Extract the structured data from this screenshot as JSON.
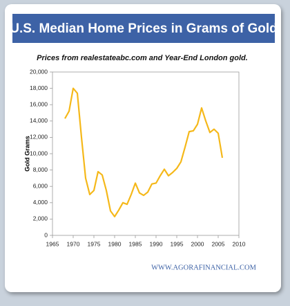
{
  "chart_data": {
    "type": "line",
    "title": "U.S. Median Home Prices in Grams of Gold",
    "subtitle": "Prices from realestateabc.com and Year-End London gold.",
    "y_label": "Gold Grams",
    "source": "WWW.AGORAFINANCIAL.COM",
    "x": [
      1968,
      1969,
      1970,
      1971,
      1972,
      1973,
      1974,
      1975,
      1976,
      1977,
      1978,
      1979,
      1980,
      1981,
      1982,
      1983,
      1984,
      1985,
      1986,
      1987,
      1988,
      1989,
      1990,
      1991,
      1992,
      1993,
      1994,
      1995,
      1996,
      1997,
      1998,
      1999,
      2000,
      2001,
      2002,
      2003,
      2004,
      2005,
      2006
    ],
    "series": [
      {
        "name": "Gold Grams",
        "color": "#f5b819",
        "values": [
          14300,
          15200,
          18000,
          17400,
          12000,
          7000,
          5000,
          5500,
          7800,
          7400,
          5500,
          3000,
          2300,
          3100,
          4000,
          3800,
          5000,
          6400,
          5200,
          4900,
          5300,
          6300,
          6400,
          7300,
          8100,
          7300,
          7700,
          8200,
          9000,
          10800,
          12700,
          12800,
          13600,
          15600,
          14000,
          12600,
          13000,
          12500,
          9500
        ]
      }
    ],
    "xlim": [
      1965,
      2010
    ],
    "xticks": [
      1965,
      1970,
      1975,
      1980,
      1985,
      1990,
      1995,
      2000,
      2005,
      2010
    ],
    "ylim": [
      0,
      20000
    ],
    "yticks": [
      0,
      {
        "value": 2000,
        "label": "2,000"
      },
      {
        "value": 4000,
        "label": "4,000"
      },
      {
        "value": 6000,
        "label": "6,000"
      },
      {
        "value": 8000,
        "label": "8,000"
      },
      {
        "value": 10000,
        "label": "10,000"
      },
      {
        "value": 12000,
        "label": "12,000"
      },
      {
        "value": 14000,
        "label": "14,000"
      },
      {
        "value": 16000,
        "label": "16,000"
      },
      {
        "value": 18000,
        "label": "18,000"
      },
      {
        "value": 20000,
        "label": "20,000"
      }
    ]
  }
}
